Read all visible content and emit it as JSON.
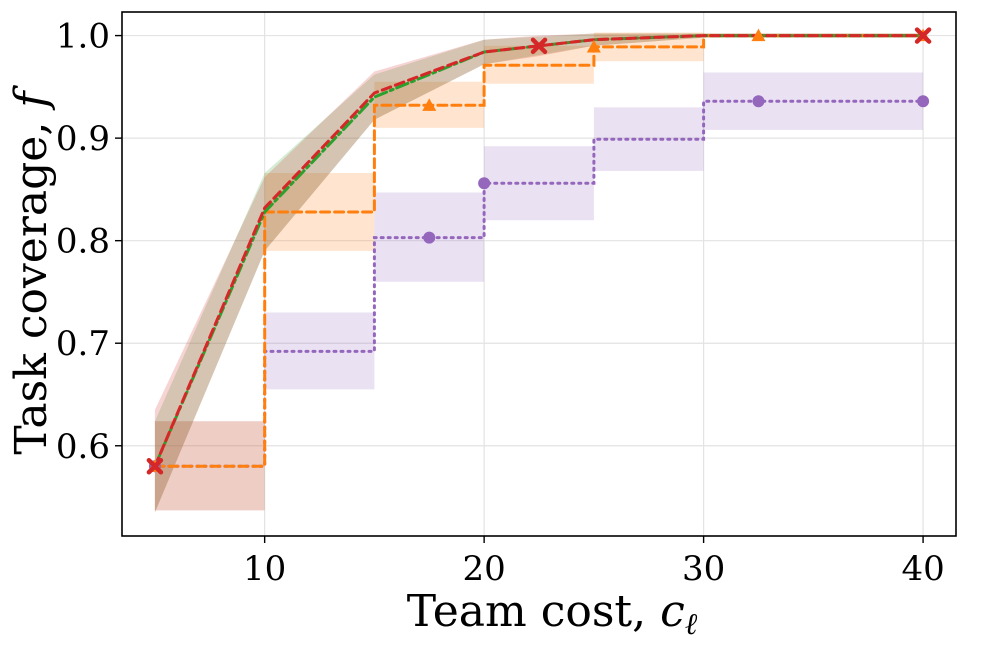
{
  "chart_data": {
    "type": "line",
    "title": "",
    "xlabel": "Team cost, ",
    "xlabel_var": "c",
    "xlabel_sub": "ℓ",
    "ylabel": "Task coverage, ",
    "ylabel_var": "f",
    "xlim": [
      3.5,
      41.5
    ],
    "ylim": [
      0.512,
      1.023
    ],
    "xticks": [
      10,
      20,
      30,
      40
    ],
    "yticks": [
      0.6,
      0.7,
      0.8,
      0.9,
      1.0
    ],
    "xtick_labels": [
      "10",
      "20",
      "30",
      "40"
    ],
    "ytick_labels": [
      "0.6",
      "0.7",
      "0.8",
      "0.9",
      "1.0"
    ],
    "grid": true,
    "series": [
      {
        "name": "purple-dotted",
        "color": "#9467bd",
        "dash": "2,5",
        "step": true,
        "marker": "circle",
        "x": [
          5,
          7.5,
          10,
          12.5,
          15,
          17.5,
          20,
          22.5,
          25,
          27.5,
          30,
          32.5,
          35,
          40
        ],
        "y": [
          0.58,
          0.58,
          0.692,
          0.692,
          0.803,
          0.803,
          0.856,
          0.856,
          0.899,
          0.899,
          0.936,
          0.936,
          0.936,
          0.936
        ],
        "lower": [
          0.537,
          0.537,
          0.655,
          0.655,
          0.76,
          0.76,
          0.82,
          0.82,
          0.868,
          0.868,
          0.908,
          0.908,
          0.908,
          0.908
        ],
        "upper": [
          0.624,
          0.624,
          0.73,
          0.73,
          0.847,
          0.847,
          0.892,
          0.892,
          0.93,
          0.93,
          0.964,
          0.964,
          0.964,
          0.964
        ],
        "marker_x": [
          5,
          17.5,
          20,
          32.5,
          40
        ],
        "marker_y": [
          0.58,
          0.803,
          0.856,
          0.936,
          0.936
        ]
      },
      {
        "name": "orange-dashed",
        "color": "#ff7f0e",
        "dash": "9,5",
        "step": true,
        "marker": "triangle",
        "x": [
          5,
          7.5,
          10,
          12.5,
          15,
          17.5,
          20,
          22.5,
          25,
          27.5,
          30,
          32.5,
          35,
          40
        ],
        "y": [
          0.58,
          0.58,
          0.828,
          0.828,
          0.932,
          0.932,
          0.971,
          0.971,
          0.989,
          0.989,
          1.0,
          1.0,
          1.0,
          1.0
        ],
        "lower": [
          0.537,
          0.537,
          0.79,
          0.79,
          0.91,
          0.91,
          0.953,
          0.953,
          0.975,
          0.975,
          0.998,
          0.998,
          0.998,
          0.998
        ],
        "upper": [
          0.624,
          0.624,
          0.866,
          0.866,
          0.955,
          0.955,
          0.99,
          0.99,
          1.003,
          1.003,
          1.002,
          1.002,
          1.002,
          1.002
        ],
        "marker_x": [
          5,
          17.5,
          25,
          32.5,
          40
        ],
        "marker_y": [
          0.58,
          0.932,
          0.989,
          1.0,
          1.0
        ]
      },
      {
        "name": "green-dashdot",
        "color": "#2ca02c",
        "dash": "12,4,3,4",
        "step": false,
        "marker": "none",
        "x": [
          5,
          10,
          15,
          20,
          25,
          30,
          35,
          40
        ],
        "y": [
          0.58,
          0.828,
          0.94,
          0.984,
          0.996,
          1.0,
          1.0,
          1.0
        ],
        "lower": [
          0.535,
          0.79,
          0.918,
          0.972,
          0.99,
          0.998,
          0.998,
          0.998
        ],
        "upper": [
          0.624,
          0.866,
          0.962,
          0.996,
          1.002,
          1.002,
          1.002,
          1.002
        ],
        "marker_x": [],
        "marker_y": []
      },
      {
        "name": "red-dashed",
        "color": "#d62728",
        "dash": "9,5",
        "step": false,
        "marker": "x",
        "x": [
          5,
          10,
          15,
          20,
          22.5,
          25,
          30,
          35,
          40
        ],
        "y": [
          0.58,
          0.832,
          0.944,
          0.984,
          0.99,
          0.996,
          1.0,
          1.0,
          1.0
        ],
        "lower": [
          0.535,
          0.79,
          0.918,
          0.972,
          0.98,
          0.99,
          0.998,
          0.998,
          0.998
        ],
        "upper": [
          0.635,
          0.862,
          0.965,
          0.996,
          1.0,
          1.002,
          1.002,
          1.002,
          1.002
        ],
        "marker_x": [
          5,
          22.5,
          40
        ],
        "marker_y": [
          0.58,
          0.99,
          1.0
        ]
      }
    ]
  }
}
